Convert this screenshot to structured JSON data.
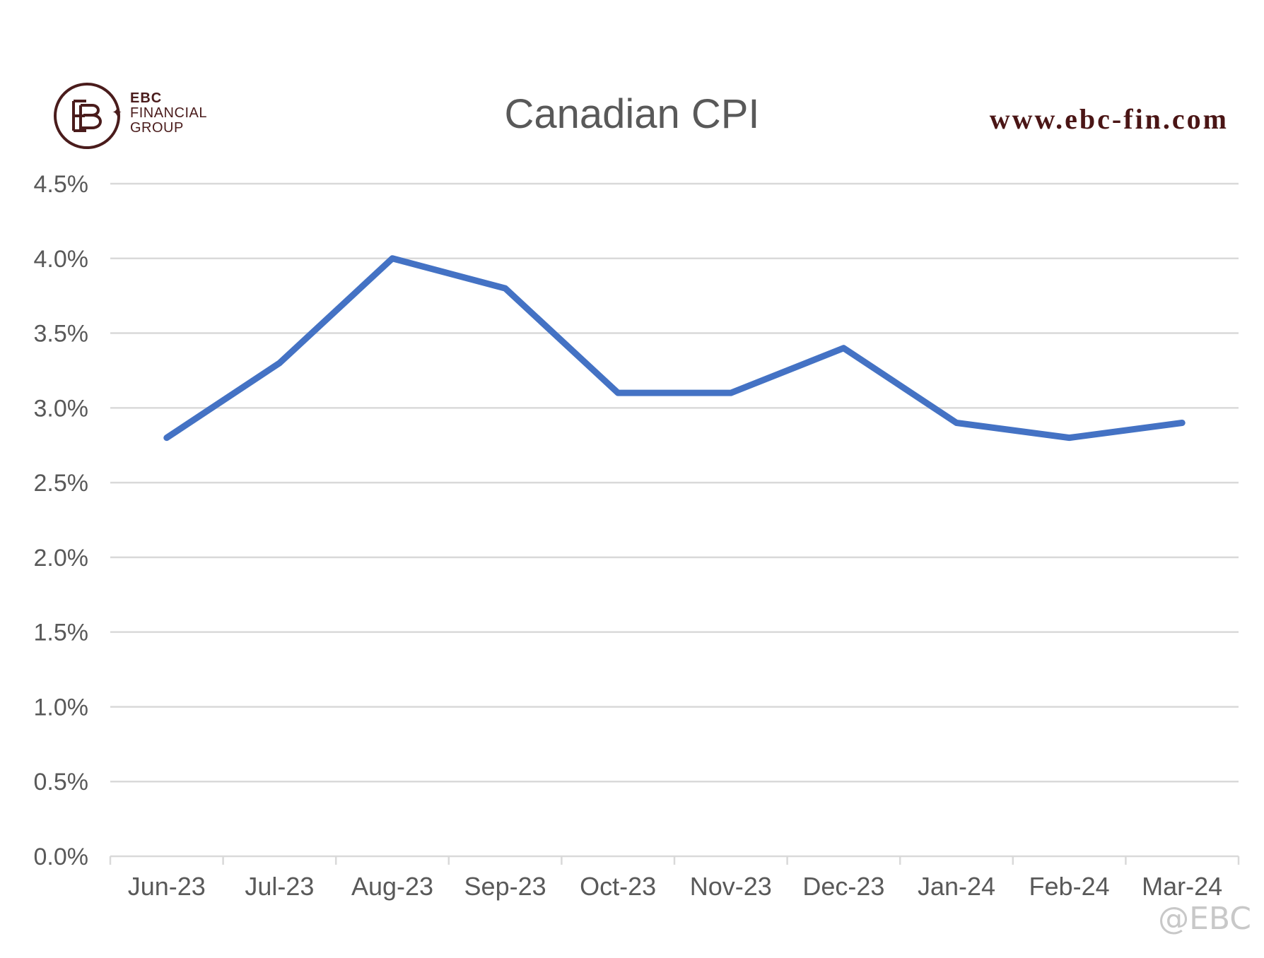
{
  "logo": {
    "line1": "EBC",
    "line2": "FINANCIAL",
    "line3": "GROUP",
    "monogram": "EB",
    "color": "#4a1c1c"
  },
  "website": "www.ebc-fin.com",
  "watermark": "⁠@EBC",
  "colors": {
    "series": "#4472c4",
    "grid": "#d9d9d9",
    "text": "#595959",
    "brand": "#4a1515"
  },
  "chart_data": {
    "type": "line",
    "title": "Canadian CPI",
    "categories": [
      "Jun-23",
      "Jul-23",
      "Aug-23",
      "Sep-23",
      "Oct-23",
      "Nov-23",
      "Dec-23",
      "Jan-24",
      "Feb-24",
      "Mar-24"
    ],
    "series": [
      {
        "values": [
          2.8,
          3.3,
          4.0,
          3.8,
          3.1,
          3.1,
          3.4,
          2.9,
          2.8,
          2.9
        ]
      }
    ],
    "ylim": [
      0,
      4.5
    ],
    "yticks": [
      "0.0%",
      "0.5%",
      "1.0%",
      "1.5%",
      "2.0%",
      "2.5%",
      "3.0%",
      "3.5%",
      "4.0%",
      "4.5%"
    ],
    "grid": true,
    "legend": "none"
  }
}
